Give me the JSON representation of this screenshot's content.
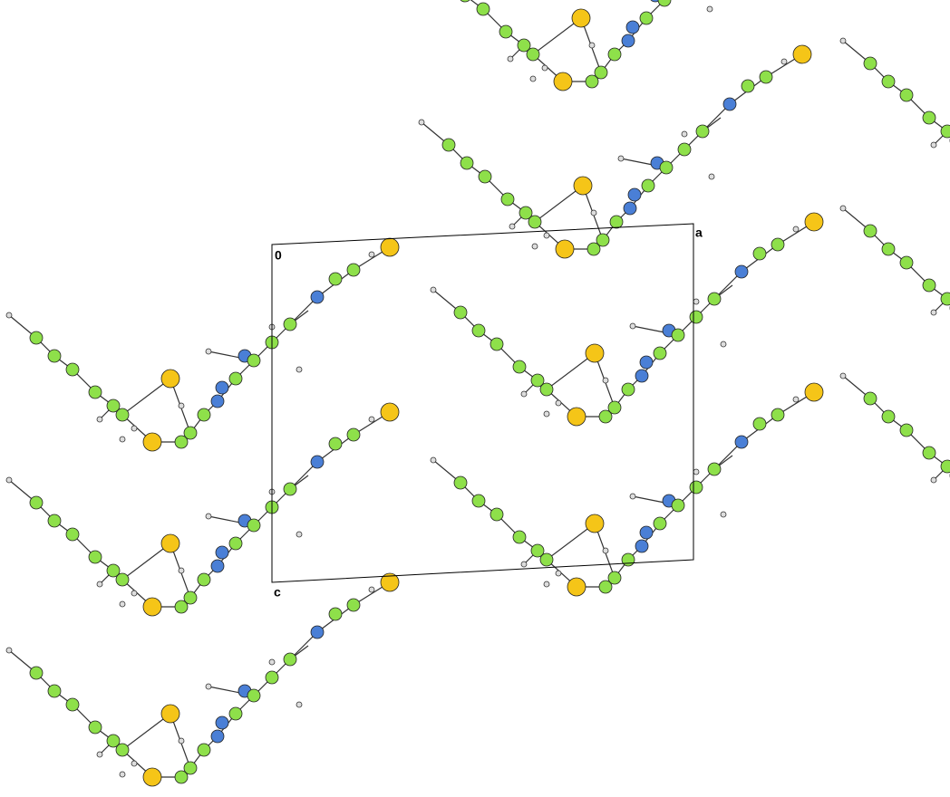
{
  "axis_labels": {
    "origin": "0",
    "a": "a",
    "c": "c"
  }
}
